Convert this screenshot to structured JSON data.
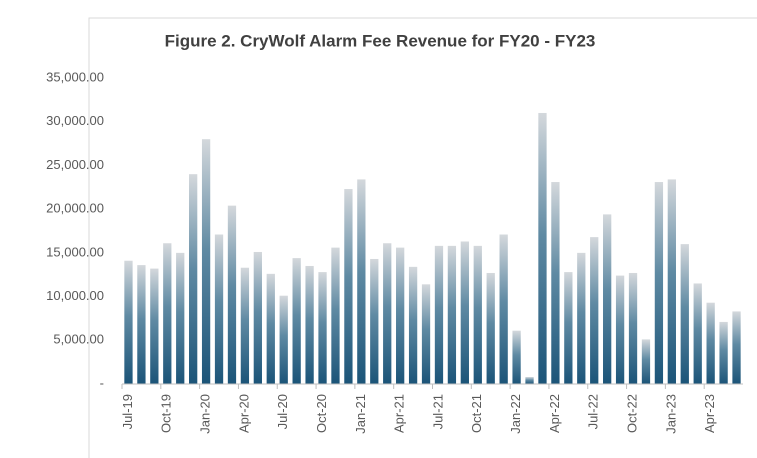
{
  "chart_data": {
    "type": "bar",
    "title": "Figure 2. CryWolf Alarm Fee Revenue for FY20 - FY23",
    "categories": [
      "Jul-19",
      null,
      null,
      "Oct-19",
      null,
      null,
      "Jan-20",
      null,
      null,
      "Apr-20",
      null,
      null,
      "Jul-20",
      null,
      null,
      "Oct-20",
      null,
      null,
      "Jan-21",
      null,
      null,
      "Apr-21",
      null,
      null,
      "Jul-21",
      null,
      null,
      "Oct-21",
      null,
      null,
      "Jan-22",
      null,
      null,
      "Apr-22",
      null,
      null,
      "Jul-22",
      null,
      null,
      "Oct-22",
      null,
      null,
      "Jan-23",
      null,
      null,
      "Apr-23",
      null,
      null
    ],
    "values": [
      14100,
      13600,
      13200,
      16100,
      15000,
      24000,
      28000,
      17100,
      20400,
      13300,
      15100,
      12600,
      10100,
      14400,
      13500,
      12800,
      15600,
      22300,
      23400,
      14300,
      16100,
      15600,
      13400,
      11400,
      15800,
      15800,
      16300,
      15800,
      12700,
      17100,
      6100,
      800,
      31000,
      23100,
      12800,
      15000,
      16800,
      19400,
      12400,
      12700,
      5100,
      23100,
      23400,
      16000,
      11500,
      9300,
      7100,
      8300
    ],
    "color": "#1b5478",
    "ylim": [
      0,
      35000
    ],
    "yticks": [
      {
        "value": 0,
        "label": "-"
      },
      {
        "value": 5000,
        "label": "5,000.00"
      },
      {
        "value": 10000,
        "label": "10,000.00"
      },
      {
        "value": 15000,
        "label": "15,000.00"
      },
      {
        "value": 20000,
        "label": "20,000.00"
      },
      {
        "value": 25000,
        "label": "25,000.00"
      },
      {
        "value": 30000,
        "label": "30,000.00"
      },
      {
        "value": 35000,
        "label": "35,000.00"
      }
    ],
    "grid": false
  }
}
